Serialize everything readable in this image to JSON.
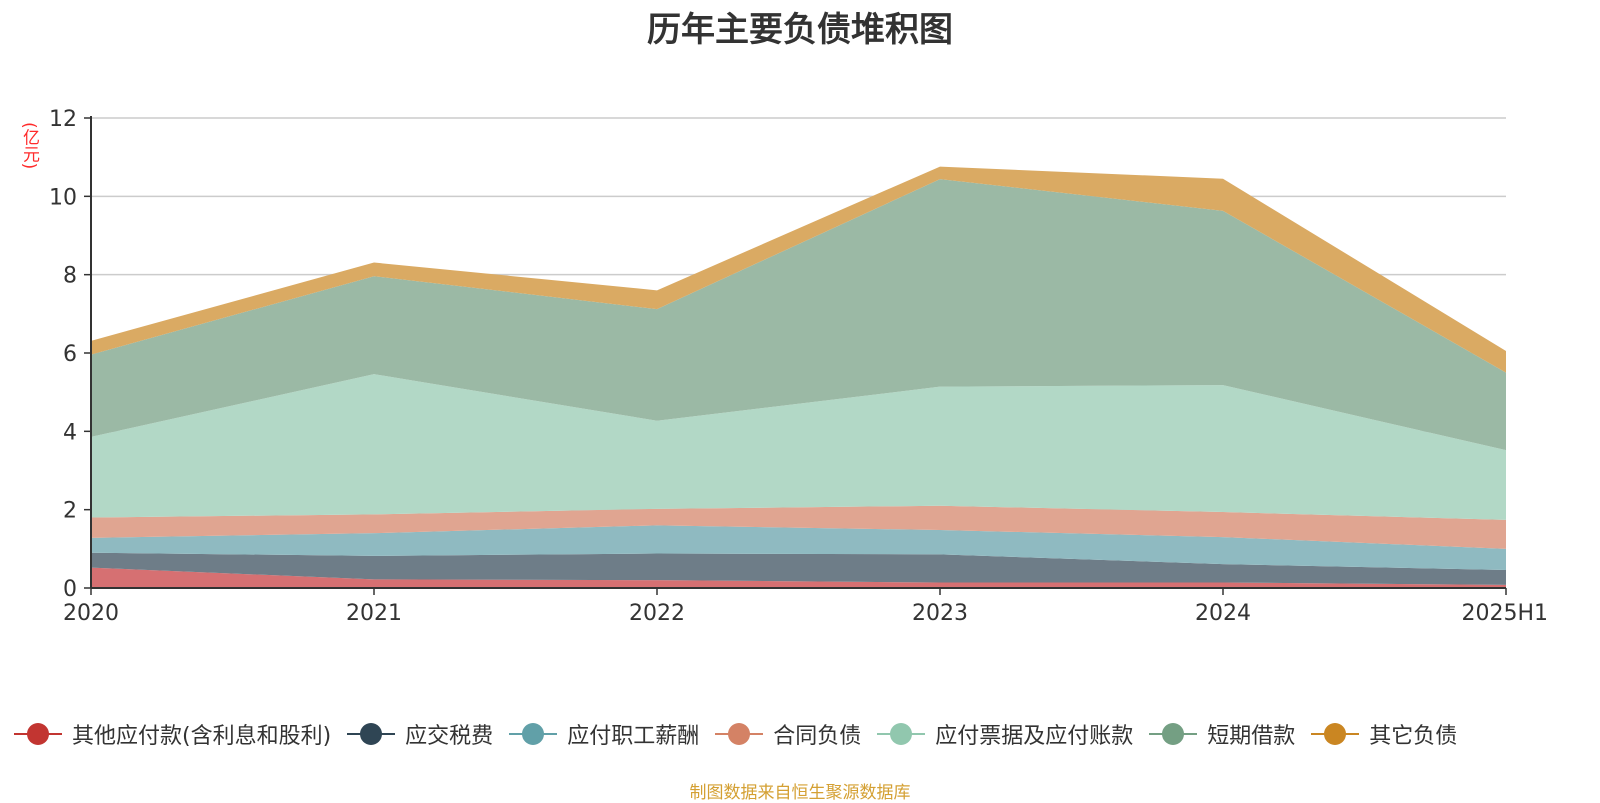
{
  "chart_data": {
    "type": "area",
    "stacked": true,
    "title": "历年主要负债堆积图",
    "unit_label": "(亿元)",
    "source_note": "制图数据来自恒生聚源数据库",
    "categories": [
      "2020",
      "2021",
      "2022",
      "2023",
      "2024",
      "2025H1"
    ],
    "ylim": [
      0,
      12
    ],
    "yticks": [
      0,
      2,
      4,
      6,
      8,
      10,
      12
    ],
    "grid": true,
    "legend_position": "bottom",
    "series": [
      {
        "name": "其他应付款(含利息和股利)",
        "color": "#c23531",
        "fill": "#d67072",
        "values": [
          0.52,
          0.22,
          0.2,
          0.14,
          0.14,
          0.08
        ]
      },
      {
        "name": "应交税费",
        "color": "#2f4554",
        "fill": "#6e7d88",
        "values": [
          0.38,
          0.6,
          0.68,
          0.72,
          0.47,
          0.38
        ]
      },
      {
        "name": "应付职工薪酬",
        "color": "#61a0a8",
        "fill": "#8fbac1",
        "values": [
          0.38,
          0.58,
          0.72,
          0.62,
          0.69,
          0.54
        ]
      },
      {
        "name": "合同负债",
        "color": "#d48265",
        "fill": "#e0a591",
        "values": [
          0.52,
          0.48,
          0.42,
          0.62,
          0.64,
          0.74
        ]
      },
      {
        "name": "应付票据及应付账款",
        "color": "#91c7ae",
        "fill": "#b2d8c6",
        "values": [
          2.06,
          3.58,
          2.25,
          3.04,
          3.24,
          1.78
        ]
      },
      {
        "name": "短期借款",
        "color": "#749f83",
        "fill": "#9bb9a5",
        "values": [
          2.1,
          2.5,
          2.85,
          5.3,
          4.45,
          1.98
        ]
      },
      {
        "name": "其它负债",
        "color": "#ca8622",
        "fill": "#daaa63",
        "values": [
          0.35,
          0.35,
          0.48,
          0.32,
          0.82,
          0.55
        ]
      }
    ]
  }
}
